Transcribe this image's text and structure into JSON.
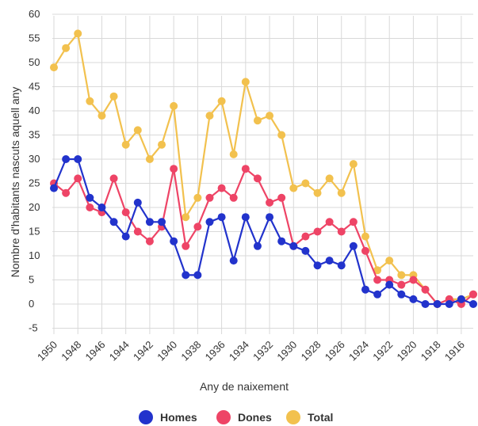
{
  "chart_data": {
    "type": "line",
    "title": "",
    "xlabel": "Any de naixement",
    "ylabel": "Nombre d'habitants nascuts aquell any",
    "ylim": [
      -5,
      60
    ],
    "yticks": [
      -5,
      0,
      5,
      10,
      15,
      20,
      25,
      30,
      35,
      40,
      45,
      50,
      55,
      60
    ],
    "x_reversed": true,
    "x": [
      1950,
      1949,
      1948,
      1947,
      1946,
      1945,
      1944,
      1943,
      1942,
      1941,
      1940,
      1939,
      1938,
      1937,
      1936,
      1935,
      1934,
      1933,
      1932,
      1931,
      1930,
      1929,
      1928,
      1927,
      1926,
      1925,
      1924,
      1923,
      1922,
      1921,
      1920,
      1919,
      1918,
      1917,
      1916,
      1915
    ],
    "xticks": [
      1950,
      1948,
      1946,
      1944,
      1942,
      1940,
      1938,
      1936,
      1934,
      1932,
      1930,
      1928,
      1926,
      1924,
      1922,
      1920,
      1918,
      1916
    ],
    "grid": true,
    "legend_position": "bottom",
    "series": [
      {
        "name": "Homes",
        "color": "#2233cc",
        "values": [
          24,
          30,
          30,
          22,
          20,
          17,
          14,
          21,
          17,
          17,
          13,
          6,
          6,
          17,
          18,
          9,
          18,
          12,
          18,
          13,
          12,
          11,
          8,
          9,
          8,
          12,
          3,
          2,
          4,
          2,
          1,
          0,
          0,
          0,
          1,
          0
        ]
      },
      {
        "name": "Dones",
        "color": "#ee4466",
        "values": [
          25,
          23,
          26,
          20,
          19,
          26,
          19,
          15,
          13,
          16,
          28,
          12,
          16,
          22,
          24,
          22,
          28,
          26,
          21,
          22,
          12,
          14,
          15,
          17,
          15,
          17,
          11,
          5,
          5,
          4,
          5,
          3,
          0,
          1,
          0,
          2
        ]
      },
      {
        "name": "Total",
        "color": "#f2c14e",
        "values": [
          49,
          53,
          56,
          42,
          39,
          43,
          33,
          36,
          30,
          33,
          41,
          18,
          22,
          39,
          42,
          31,
          46,
          38,
          39,
          35,
          24,
          25,
          23,
          26,
          23,
          29,
          14,
          7,
          9,
          6,
          6,
          3,
          0,
          1,
          1,
          2
        ]
      }
    ]
  }
}
